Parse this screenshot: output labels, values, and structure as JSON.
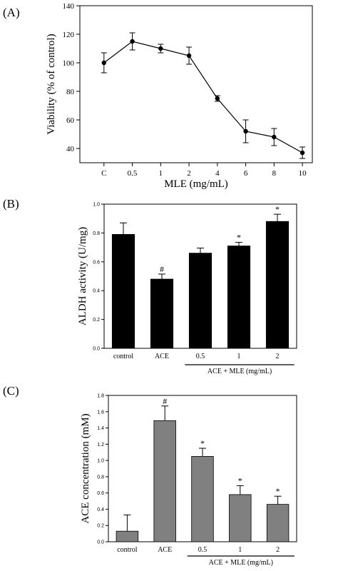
{
  "chart_data": [
    {
      "panel_label": "(A)",
      "type": "line",
      "categories": [
        "C",
        "0.5",
        "1",
        "2",
        "4",
        "6",
        "8",
        "10"
      ],
      "values": [
        100,
        115,
        110,
        105,
        75,
        52,
        48,
        37
      ],
      "errors": [
        7,
        6,
        3,
        6,
        2,
        8,
        6,
        4
      ],
      "xlabel": "MLE (mg/mL)",
      "ylabel": "Viability (% of control)",
      "ylim": [
        30,
        140
      ],
      "yticks": [
        40,
        60,
        80,
        100,
        120,
        140
      ],
      "ytick_labels": [
        "40",
        "60",
        "80",
        "100",
        "120",
        "140"
      ],
      "grid": false,
      "colors": {
        "line": "#000000"
      }
    },
    {
      "panel_label": "(B)",
      "type": "bar",
      "categories": [
        "control",
        "ACE",
        "0.5",
        "1",
        "2"
      ],
      "values": [
        0.79,
        0.48,
        0.66,
        0.71,
        0.88
      ],
      "errors": [
        0.08,
        0.035,
        0.035,
        0.025,
        0.05
      ],
      "annotations": [
        "",
        "#",
        "",
        "*",
        "*"
      ],
      "group_label": "ACE + MLE  (mg/mL)",
      "group_range": [
        2,
        4
      ],
      "xlabel": "",
      "ylabel": "ALDH activity (U/mg)",
      "ylim": [
        0,
        1.0
      ],
      "yticks": [
        0,
        0.2,
        0.4,
        0.6,
        0.8,
        1.0
      ],
      "ytick_labels": [
        "0.0",
        "0.2",
        "0.4",
        "0.6",
        "0.8",
        "1.0"
      ],
      "grid": false,
      "colors": {
        "bar": "#000000"
      }
    },
    {
      "panel_label": "(C)",
      "type": "bar",
      "categories": [
        "control",
        "ACE",
        "0.5",
        "1",
        "2"
      ],
      "values": [
        0.13,
        1.49,
        1.05,
        0.58,
        0.46
      ],
      "errors": [
        0.2,
        0.18,
        0.1,
        0.11,
        0.1
      ],
      "annotations": [
        "",
        "#",
        "*",
        "*",
        "*"
      ],
      "group_label": "ACE + MLE  (mg/mL)",
      "group_range": [
        2,
        4
      ],
      "xlabel": "",
      "ylabel": "ACE concentration (mM)",
      "ylim": [
        0,
        1.8
      ],
      "yticks": [
        0,
        0.2,
        0.4,
        0.6,
        0.8,
        1.0,
        1.2,
        1.4,
        1.6,
        1.8
      ],
      "ytick_labels": [
        "0.0",
        "0.2",
        "0.4",
        "0.6",
        "0.8",
        "1.0",
        "1.2",
        "1.4",
        "1.6",
        "1.8"
      ],
      "grid": false,
      "colors": {
        "bar": "#808080"
      }
    }
  ]
}
